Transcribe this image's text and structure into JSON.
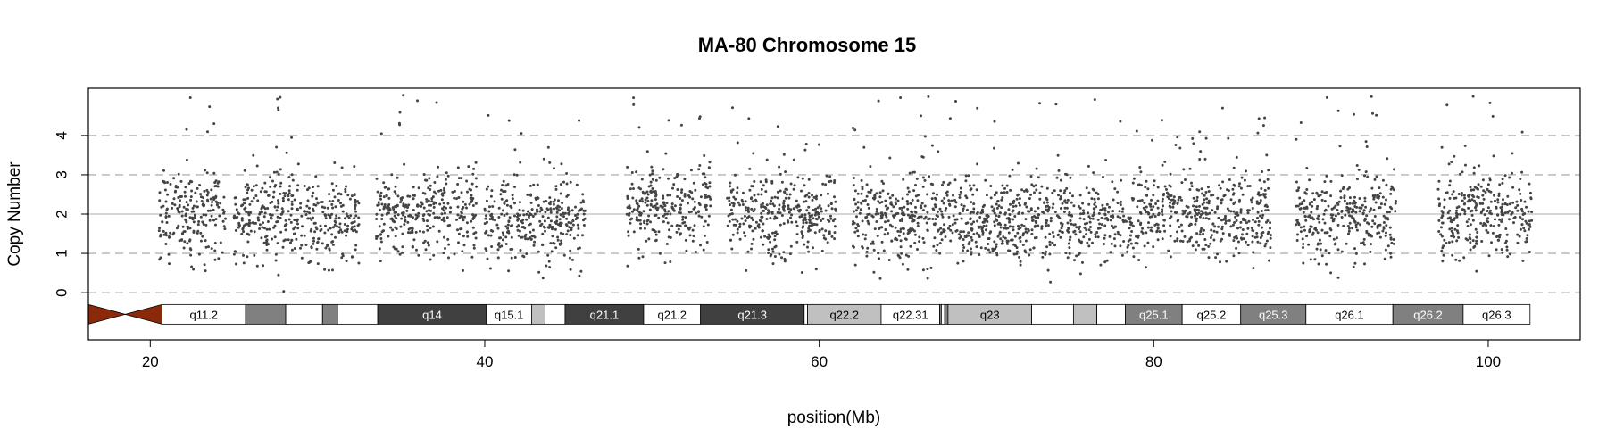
{
  "chart_data": {
    "type": "scatter",
    "title": "MA-80  Chromosome 15",
    "xlabel": "position(Mb)",
    "ylabel": "Copy Number",
    "xlim": [
      16.3,
      105.5
    ],
    "ylim": [
      -1.2,
      5.2
    ],
    "x_ticks": [
      20,
      40,
      60,
      80,
      100
    ],
    "y_ticks": [
      0,
      1,
      2,
      3,
      4
    ],
    "dashed_gridlines_y": [
      0,
      1,
      3,
      4
    ],
    "solid_gridline_y": 2,
    "point_color": "#444444",
    "centromere_color": "#8b2a0a",
    "centromere_range": [
      16.3,
      20.7
    ],
    "cluster_summary": [
      {
        "x_start": 20.5,
        "x_end": 24.5,
        "median": 2.0
      },
      {
        "x_start": 25.0,
        "x_end": 32.5,
        "median": 1.9
      },
      {
        "x_start": 33.5,
        "x_end": 39.5,
        "median": 2.0
      },
      {
        "x_start": 40.0,
        "x_end": 44.5,
        "median": 1.8
      },
      {
        "x_start": 44.5,
        "x_end": 46.0,
        "median": 1.9
      },
      {
        "x_start": 48.5,
        "x_end": 53.5,
        "median": 2.1
      },
      {
        "x_start": 54.5,
        "x_end": 61.0,
        "median": 2.0
      },
      {
        "x_start": 62.0,
        "x_end": 69.0,
        "median": 1.9
      },
      {
        "x_start": 69.0,
        "x_end": 79.0,
        "median": 1.8
      },
      {
        "x_start": 79.0,
        "x_end": 83.0,
        "median": 2.1
      },
      {
        "x_start": 83.0,
        "x_end": 87.0,
        "median": 1.9
      },
      {
        "x_start": 88.5,
        "x_end": 92.5,
        "median": 1.9
      },
      {
        "x_start": 92.5,
        "x_end": 94.5,
        "median": 2.0
      },
      {
        "x_start": 97.0,
        "x_end": 102.6,
        "median": 2.0
      }
    ],
    "bands": [
      {
        "label": "q11.2",
        "start": 20.7,
        "end": 25.7,
        "color": "#ffffff"
      },
      {
        "label": "",
        "start": 25.7,
        "end": 28.1,
        "color": "#808080"
      },
      {
        "label": "",
        "start": 28.1,
        "end": 30.3,
        "color": "#ffffff"
      },
      {
        "label": "",
        "start": 30.3,
        "end": 31.2,
        "color": "#808080"
      },
      {
        "label": "",
        "start": 31.2,
        "end": 33.6,
        "color": "#ffffff"
      },
      {
        "label": "q14",
        "start": 33.6,
        "end": 40.1,
        "color": "#404040"
      },
      {
        "label": "q15.1",
        "start": 40.1,
        "end": 42.8,
        "color": "#ffffff"
      },
      {
        "label": "",
        "start": 42.8,
        "end": 43.6,
        "color": "#c0c0c0"
      },
      {
        "label": "",
        "start": 43.6,
        "end": 44.8,
        "color": "#ffffff"
      },
      {
        "label": "q21.1",
        "start": 44.8,
        "end": 49.5,
        "color": "#404040"
      },
      {
        "label": "q21.2",
        "start": 49.5,
        "end": 52.9,
        "color": "#ffffff"
      },
      {
        "label": "q21.3",
        "start": 52.9,
        "end": 59.1,
        "color": "#404040"
      },
      {
        "label": "",
        "start": 59.1,
        "end": 59.3,
        "color": "#ffffff"
      },
      {
        "label": "q22.2",
        "start": 59.3,
        "end": 63.7,
        "color": "#c0c0c0"
      },
      {
        "label": "q22.31",
        "start": 63.7,
        "end": 67.2,
        "color": "#ffffff"
      },
      {
        "label": "",
        "start": 67.2,
        "end": 67.3,
        "color": "#808080"
      },
      {
        "label": "",
        "start": 67.3,
        "end": 67.5,
        "color": "#ffffff"
      },
      {
        "label": "",
        "start": 67.5,
        "end": 67.7,
        "color": "#808080"
      },
      {
        "label": "q23",
        "start": 67.7,
        "end": 72.7,
        "color": "#c0c0c0"
      },
      {
        "label": "",
        "start": 72.7,
        "end": 75.2,
        "color": "#ffffff"
      },
      {
        "label": "",
        "start": 75.2,
        "end": 76.6,
        "color": "#c0c0c0"
      },
      {
        "label": "",
        "start": 76.6,
        "end": 78.3,
        "color": "#ffffff"
      },
      {
        "label": "q25.1",
        "start": 78.3,
        "end": 81.7,
        "color": "#808080"
      },
      {
        "label": "q25.2",
        "start": 81.7,
        "end": 85.2,
        "color": "#ffffff"
      },
      {
        "label": "q25.3",
        "start": 85.2,
        "end": 89.1,
        "color": "#808080"
      },
      {
        "label": "q26.1",
        "start": 89.1,
        "end": 94.3,
        "color": "#ffffff"
      },
      {
        "label": "q26.2",
        "start": 94.3,
        "end": 98.5,
        "color": "#808080"
      },
      {
        "label": "q26.3",
        "start": 98.5,
        "end": 102.5,
        "color": "#ffffff"
      }
    ]
  }
}
